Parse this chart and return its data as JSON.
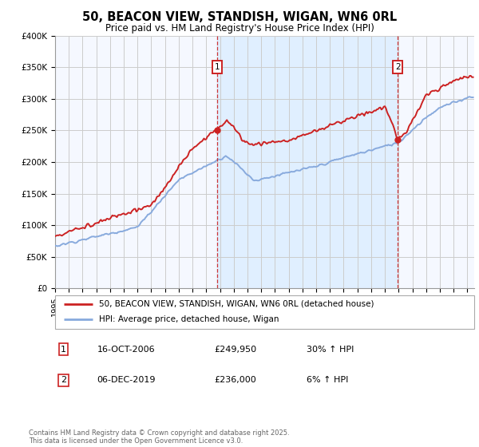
{
  "title": "50, BEACON VIEW, STANDISH, WIGAN, WN6 0RL",
  "subtitle": "Price paid vs. HM Land Registry's House Price Index (HPI)",
  "ylim": [
    0,
    400000
  ],
  "yticks": [
    0,
    50000,
    100000,
    150000,
    200000,
    250000,
    300000,
    350000,
    400000
  ],
  "ytick_labels": [
    "£0",
    "£50K",
    "£100K",
    "£150K",
    "£200K",
    "£250K",
    "£300K",
    "£350K",
    "£400K"
  ],
  "xlim_start": 1995.0,
  "xlim_end": 2025.5,
  "line1_color": "#cc2222",
  "line2_color": "#88aadd",
  "line1_label": "50, BEACON VIEW, STANDISH, WIGAN, WN6 0RL (detached house)",
  "line2_label": "HPI: Average price, detached house, Wigan",
  "transaction1_x": 2006.79,
  "transaction1_y": 249950,
  "transaction2_x": 2019.93,
  "transaction2_y": 236000,
  "vline_color": "#cc2222",
  "shade_color": "#ddeeff",
  "background_color": "#f5f8ff",
  "grid_color": "#cccccc",
  "transaction1_date": "16-OCT-2006",
  "transaction1_price": "£249,950",
  "transaction1_hpi": "30% ↑ HPI",
  "transaction2_date": "06-DEC-2019",
  "transaction2_price": "£236,000",
  "transaction2_hpi": "6% ↑ HPI",
  "copyright_text": "Contains HM Land Registry data © Crown copyright and database right 2025.\nThis data is licensed under the Open Government Licence v3.0."
}
